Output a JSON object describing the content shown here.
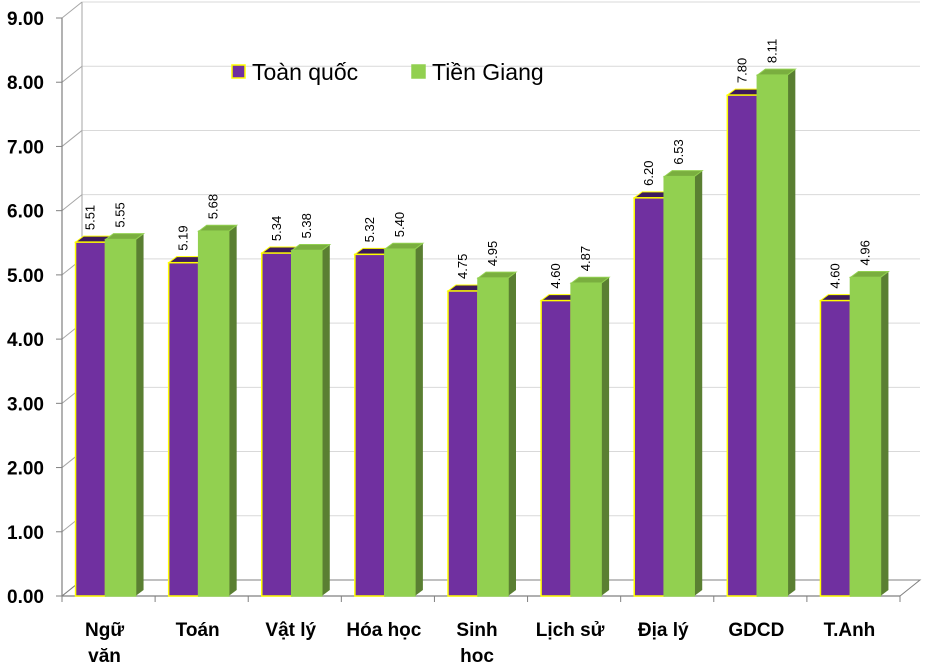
{
  "chart_data": {
    "type": "bar",
    "title": "",
    "xlabel": "",
    "ylabel": "",
    "ylim": [
      0,
      9
    ],
    "y_ticks": [
      "0.00",
      "1.00",
      "2.00",
      "3.00",
      "4.00",
      "5.00",
      "6.00",
      "7.00",
      "8.00",
      "9.00"
    ],
    "grid": true,
    "style": "3d-clustered",
    "legend_position": "top-left",
    "categories": [
      [
        "Ngữ",
        "văn"
      ],
      [
        "Toán"
      ],
      [
        "Vật lý"
      ],
      [
        "Hóa học"
      ],
      [
        "Sinh",
        "học"
      ],
      [
        "Lịch sử"
      ],
      [
        "Địa lý"
      ],
      [
        "GDCD"
      ],
      [
        "T.Anh"
      ]
    ],
    "series": [
      {
        "name": "Toàn quốc",
        "color": "#7030A0",
        "top_color": "#3d1a5c",
        "side_color": "#4e2272",
        "border_color": "#FFFF00",
        "values": [
          5.51,
          5.19,
          5.34,
          5.32,
          4.75,
          4.6,
          6.2,
          7.8,
          4.6
        ],
        "labels": [
          "5.51",
          "5.19",
          "5.34",
          "5.32",
          "4.75",
          "4.60",
          "6.20",
          "7.80",
          "4.60"
        ]
      },
      {
        "name": "Tiền Giang",
        "color": "#92D050",
        "top_color": "#7aae3f",
        "side_color": "#5a7f32",
        "border_color": "#92D050",
        "values": [
          5.55,
          5.68,
          5.38,
          5.4,
          4.95,
          4.87,
          6.53,
          8.11,
          4.96
        ],
        "labels": [
          "5.55",
          "5.68",
          "5.38",
          "5.40",
          "4.95",
          "4.87",
          "6.53",
          "8.11",
          "4.96"
        ]
      }
    ]
  }
}
